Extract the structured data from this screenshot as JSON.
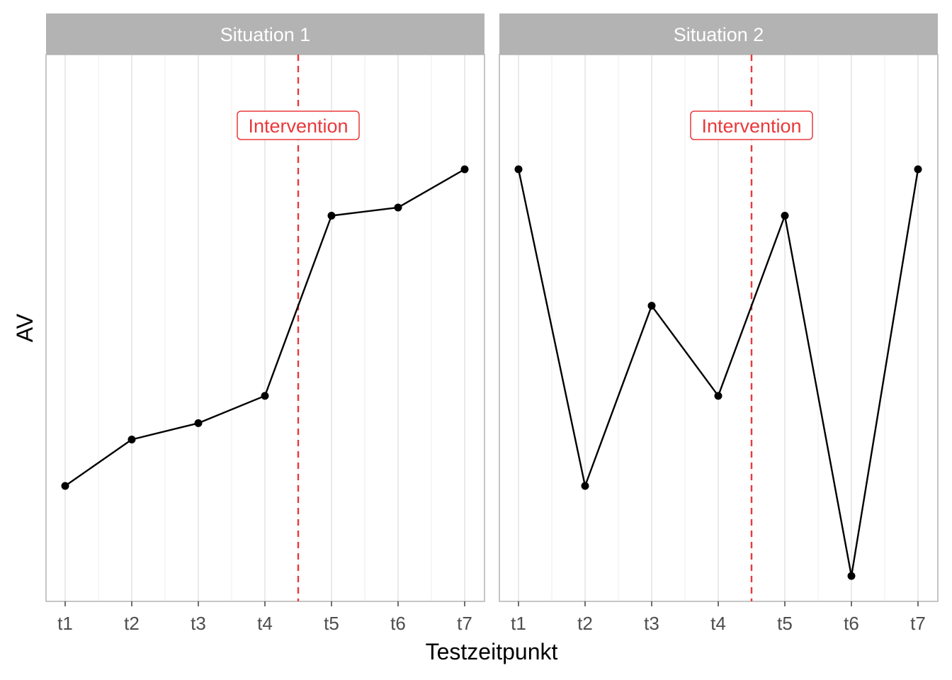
{
  "chart_data": {
    "type": "line",
    "xlabel": "Testzeitpunkt",
    "ylabel": "AV",
    "categories": [
      "t1",
      "t2",
      "t3",
      "t4",
      "t5",
      "t6",
      "t7"
    ],
    "ylim": [
      0,
      1
    ],
    "y_ticks_shown": false,
    "grid": true,
    "intervention": {
      "label": "Intervention",
      "after_index": 3.5,
      "color": "#e8393b"
    },
    "panels": [
      {
        "title": "Situation 1",
        "values": [
          0.21,
          0.295,
          0.325,
          0.375,
          0.705,
          0.72,
          0.79
        ]
      },
      {
        "title": "Situation 2",
        "values": [
          0.79,
          0.21,
          0.54,
          0.375,
          0.705,
          0.045,
          0.79
        ]
      }
    ],
    "colors": {
      "line": "#000000",
      "strip": "#b3b3b3",
      "grid": "#e0e0e0"
    }
  }
}
